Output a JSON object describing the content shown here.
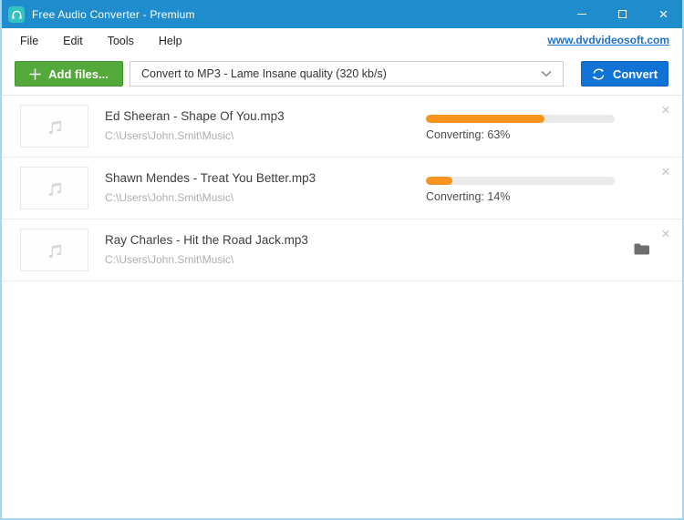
{
  "window": {
    "title": "Free Audio Converter - Premium"
  },
  "menu": {
    "items": [
      "File",
      "Edit",
      "Tools",
      "Help"
    ],
    "link": "www.dvdvideosoft.com"
  },
  "toolbar": {
    "add_files_label": "Add files...",
    "preset_value": "Convert to MP3 - Lame Insane quality (320 kb/s)",
    "convert_label": "Convert"
  },
  "files": [
    {
      "name": "Ed Sheeran - Shape Of You.mp3",
      "path": "C:\\Users\\John.Smit\\Music\\",
      "progress": 63,
      "status": "Converting: 63%"
    },
    {
      "name": "Shawn Mendes - Treat You Better.mp3",
      "path": "C:\\Users\\John.Smit\\Music\\",
      "progress": 14,
      "status": "Converting: 14%"
    },
    {
      "name": "Ray Charles - Hit the Road Jack.mp3",
      "path": "C:\\Users\\John.Smit\\Music\\"
    }
  ],
  "icons": {
    "close": "×"
  },
  "colors": {
    "titlebar_blue": "#1e8ccd",
    "app_icon_teal": "#35c3c1",
    "add_button_green": "#53a93a",
    "convert_button_blue": "#1273d6",
    "progress_orange": "#f7941e",
    "link_blue": "#1e70c8"
  }
}
